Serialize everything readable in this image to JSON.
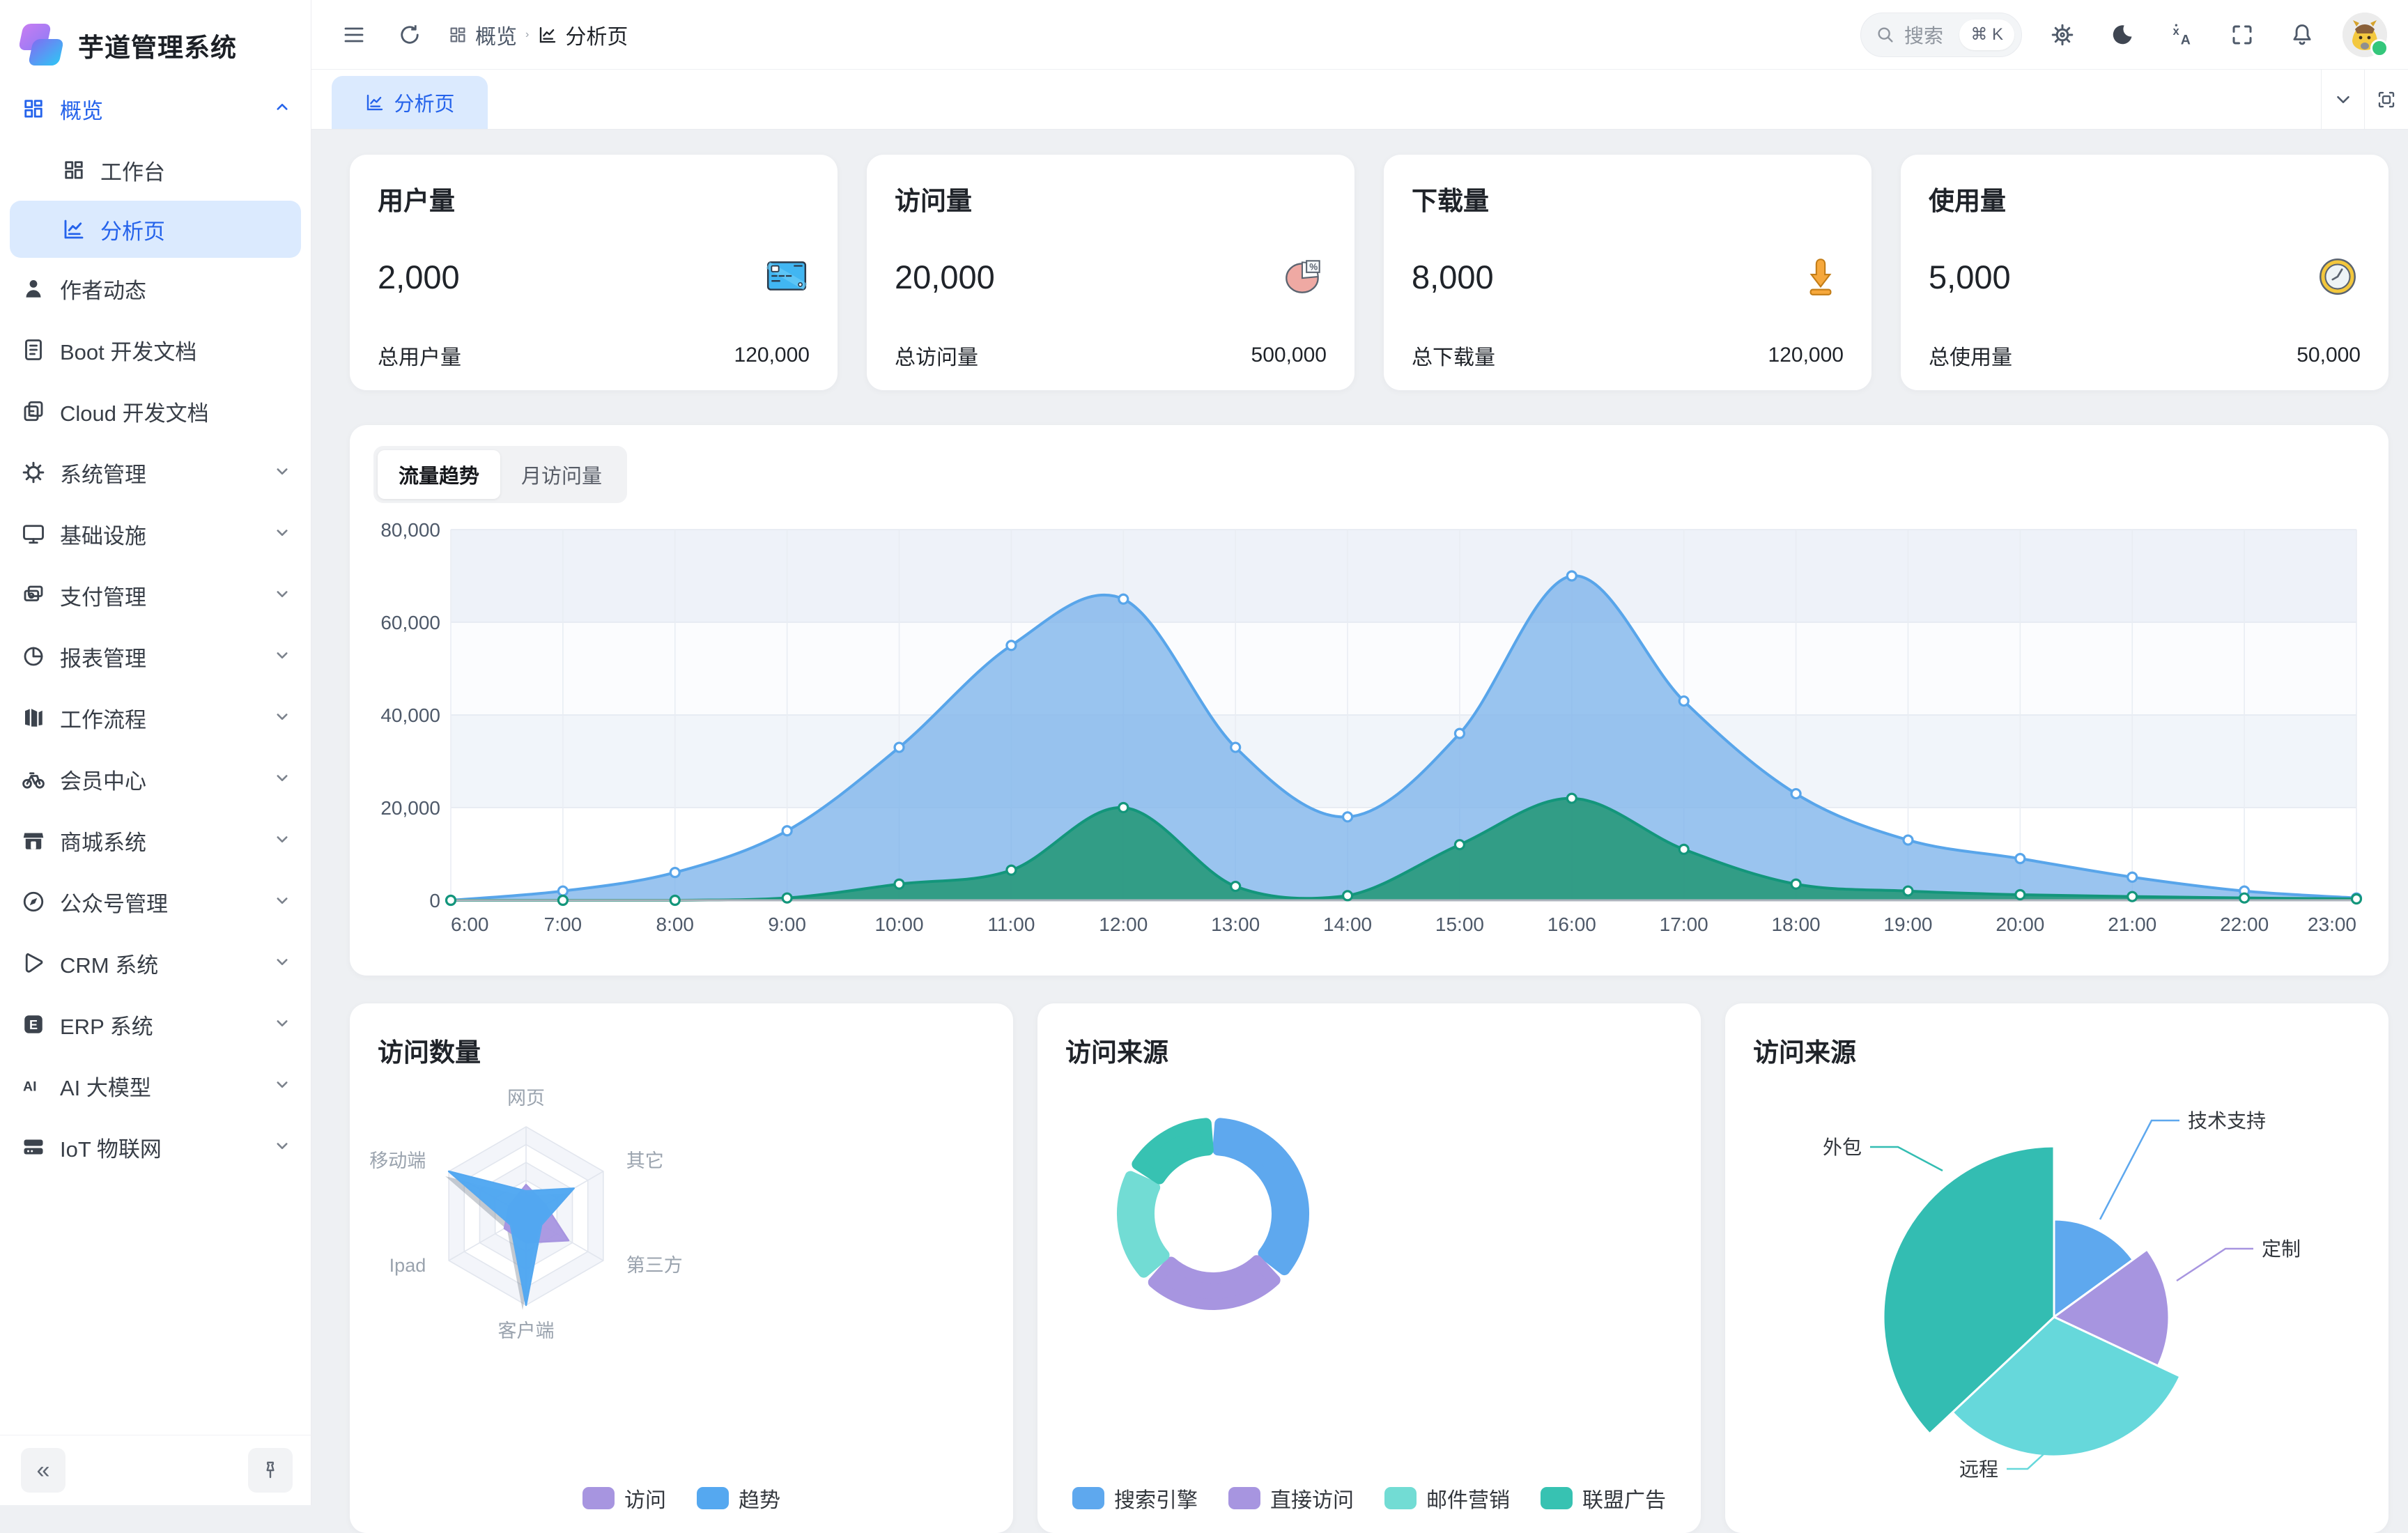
{
  "app": {
    "title": "芋道管理系统"
  },
  "sidebar": {
    "items": [
      {
        "label": "概览",
        "icon": "grid",
        "active": true,
        "expanded": true,
        "children": [
          {
            "label": "工作台",
            "icon": "grid"
          },
          {
            "label": "分析页",
            "icon": "chart",
            "active": true
          }
        ]
      },
      {
        "label": "作者动态",
        "icon": "person"
      },
      {
        "label": "Boot 开发文档",
        "icon": "doc"
      },
      {
        "label": "Cloud 开发文档",
        "icon": "docs"
      },
      {
        "label": "系统管理",
        "icon": "gear",
        "expandable": true
      },
      {
        "label": "基础设施",
        "icon": "monitor",
        "expandable": true
      },
      {
        "label": "支付管理",
        "icon": "wallet",
        "expandable": true
      },
      {
        "label": "报表管理",
        "icon": "pie",
        "expandable": true
      },
      {
        "label": "工作流程",
        "icon": "flow",
        "expandable": true
      },
      {
        "label": "会员中心",
        "icon": "bike",
        "expandable": true
      },
      {
        "label": "商城系统",
        "icon": "shop",
        "expandable": true
      },
      {
        "label": "公众号管理",
        "icon": "compass",
        "expandable": true
      },
      {
        "label": "CRM 系统",
        "icon": "crm",
        "expandable": true
      },
      {
        "label": "ERP 系统",
        "icon": "erp",
        "expandable": true
      },
      {
        "label": "AI 大模型",
        "icon": "ai",
        "expandable": true
      },
      {
        "label": "IoT 物联网",
        "icon": "iot",
        "expandable": true
      }
    ]
  },
  "header": {
    "breadcrumb": [
      {
        "label": "概览",
        "icon": "grid"
      },
      {
        "label": "分析页",
        "icon": "chart"
      }
    ],
    "search": {
      "placeholder": "搜索",
      "shortcut": "⌘ K"
    }
  },
  "tabbar": {
    "tabs": [
      {
        "label": "分析页",
        "icon": "chart",
        "active": true
      }
    ]
  },
  "stats": [
    {
      "title": "用户量",
      "value": "2,000",
      "icon": "card",
      "total_label": "总用户量",
      "total_value": "120,000"
    },
    {
      "title": "访问量",
      "value": "20,000",
      "icon": "piepink",
      "total_label": "总访问量",
      "total_value": "500,000"
    },
    {
      "title": "下载量",
      "value": "8,000",
      "icon": "download",
      "total_label": "总下载量",
      "total_value": "120,000"
    },
    {
      "title": "使用量",
      "value": "5,000",
      "icon": "clock",
      "total_label": "总使用量",
      "total_value": "50,000"
    }
  ],
  "trend_card": {
    "tabs": [
      {
        "label": "流量趋势",
        "active": true
      },
      {
        "label": "月访问量"
      }
    ]
  },
  "chart_data": [
    {
      "id": "traffic-trend",
      "type": "area",
      "title": "流量趋势",
      "x": [
        "6:00",
        "7:00",
        "8:00",
        "9:00",
        "10:00",
        "11:00",
        "12:00",
        "13:00",
        "14:00",
        "15:00",
        "16:00",
        "17:00",
        "18:00",
        "19:00",
        "20:00",
        "21:00",
        "22:00",
        "23:00"
      ],
      "series": [
        {
          "color": "#58a5ea",
          "fill": "rgba(125,180,235,0.78)",
          "values": [
            0,
            2000,
            6000,
            15000,
            33000,
            55000,
            65000,
            33000,
            18000,
            36000,
            70000,
            43000,
            23000,
            13000,
            9000,
            5000,
            2000,
            500
          ]
        },
        {
          "color": "#13967b",
          "fill": "rgba(41,153,125,0.92)",
          "values": [
            0,
            0,
            0,
            500,
            3500,
            6500,
            20000,
            3000,
            1000,
            12000,
            22000,
            11000,
            3500,
            2000,
            1200,
            800,
            500,
            300
          ]
        }
      ],
      "ylim": [
        0,
        80000
      ],
      "yticks": [
        "0",
        "20,000",
        "40,000",
        "60,000",
        "80,000"
      ],
      "grid": true,
      "legend_position": "none"
    },
    {
      "id": "visit-count-radar",
      "type": "radar",
      "title": "访问数量",
      "axes": [
        "网页",
        "其它",
        "第三方",
        "客户端",
        "Ipad",
        "移动端"
      ],
      "max": 100,
      "series": [
        {
          "name": "访问",
          "color": "#a795e0",
          "values": [
            35,
            25,
            55,
            30,
            28,
            22
          ]
        },
        {
          "name": "趋势",
          "color": "#55a8f0",
          "values": [
            28,
            62,
            20,
            100,
            20,
            100
          ]
        }
      ],
      "legend_position": "bottom"
    },
    {
      "id": "visit-source-donut",
      "type": "donut",
      "title": "访问来源",
      "slices": [
        {
          "name": "搜索引擎",
          "value": 1048,
          "color": "#5ea8ee"
        },
        {
          "name": "直接访问",
          "value": 735,
          "color": "#a795e0"
        },
        {
          "name": "邮件营销",
          "value": 580,
          "color": "#72dcd4"
        },
        {
          "name": "联盟广告",
          "value": 484,
          "color": "#37c2b2"
        }
      ],
      "legend_position": "bottom"
    },
    {
      "id": "visit-source-rose",
      "type": "pie",
      "title": "访问来源",
      "slices": [
        {
          "name": "技术支持",
          "value": 15,
          "color": "#5ea8ee"
        },
        {
          "name": "定制",
          "value": 17,
          "color": "#a795e0"
        },
        {
          "name": "远程",
          "value": 31,
          "color": "#66d8db"
        },
        {
          "name": "外包",
          "value": 37,
          "color": "#33bdb2"
        }
      ],
      "legend_position": "labels"
    }
  ]
}
